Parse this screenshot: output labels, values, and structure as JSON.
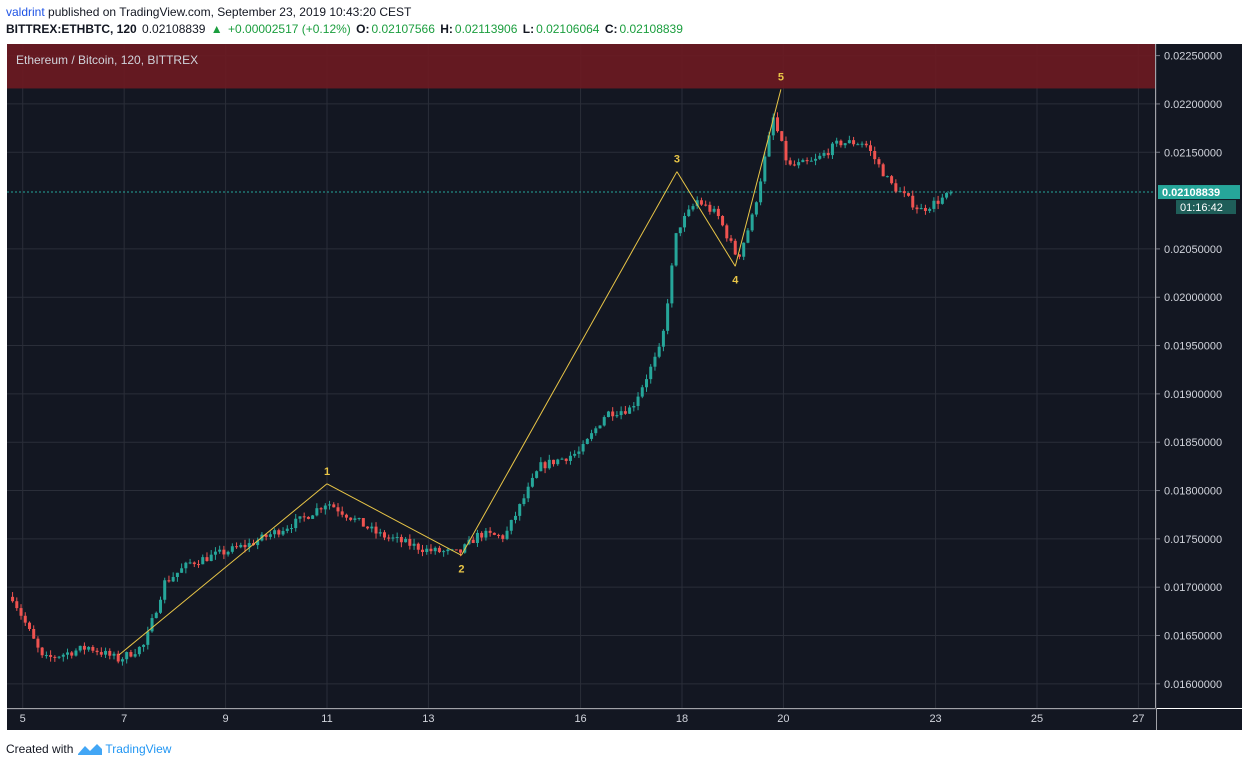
{
  "header": {
    "user": "valdrint",
    "published_text": "published on TradingView.com, September 23, 2019 10:43:20 CEST",
    "symbol": "BITTREX:ETHBTC, 120",
    "last": "0.02108839",
    "change": "+0.00002517 (+0.12%)",
    "open_label": "O:",
    "open": "0.02107566",
    "high_label": "H:",
    "high": "0.02113906",
    "low_label": "L:",
    "low": "0.02106064",
    "close_label": "C:",
    "close": "0.02108839"
  },
  "footer": {
    "created_with": "Created with",
    "brand": "TradingView"
  },
  "colors": {
    "background": "#131722",
    "grid": "#2a2e39",
    "up": "#26a69a",
    "down": "#ef5350",
    "wave_line": "#e8c547",
    "resistance": "#6b1a22",
    "price_line": "#26a69a"
  },
  "chart_data": {
    "type": "candlestick",
    "title": "Ethereum / Bitcoin, 120, BITTREX",
    "x_tick_labels": [
      "5",
      "7",
      "9",
      "11",
      "13",
      "16",
      "18",
      "20",
      "23",
      "25",
      "27"
    ],
    "y_tick_labels": [
      "0.02250000",
      "0.02200000",
      "0.02150000",
      "0.02050000",
      "0.02000000",
      "0.01950000",
      "0.01900000",
      "0.01850000",
      "0.01800000",
      "0.01750000",
      "0.01700000",
      "0.01650000",
      "0.01600000"
    ],
    "ylim": [
      0.01575,
      0.02262
    ],
    "current_price_label": "0.02108839",
    "countdown_label": "01:16:42",
    "current_price": 0.02108839,
    "resistance_zone": [
      0.02216,
      0.02262
    ],
    "anchors": [
      {
        "day": 4.8,
        "price": 0.0169
      },
      {
        "day": 5.4,
        "price": 0.01625
      },
      {
        "day": 6.3,
        "price": 0.01638
      },
      {
        "day": 6.9,
        "price": 0.01625
      },
      {
        "day": 7.4,
        "price": 0.0164
      },
      {
        "day": 7.8,
        "price": 0.01705
      },
      {
        "day": 8.3,
        "price": 0.01725
      },
      {
        "day": 9.5,
        "price": 0.01745
      },
      {
        "day": 10.5,
        "price": 0.0177
      },
      {
        "day": 11.0,
        "price": 0.01788
      },
      {
        "day": 12.0,
        "price": 0.01755
      },
      {
        "day": 13.0,
        "price": 0.01738
      },
      {
        "day": 13.6,
        "price": 0.01735
      },
      {
        "day": 14.0,
        "price": 0.01755
      },
      {
        "day": 14.5,
        "price": 0.01752
      },
      {
        "day": 15.2,
        "price": 0.01825
      },
      {
        "day": 16.0,
        "price": 0.0184
      },
      {
        "day": 16.5,
        "price": 0.0188
      },
      {
        "day": 17.0,
        "price": 0.01885
      },
      {
        "day": 17.6,
        "price": 0.0195
      },
      {
        "day": 17.9,
        "price": 0.0207
      },
      {
        "day": 18.3,
        "price": 0.021
      },
      {
        "day": 18.7,
        "price": 0.02085
      },
      {
        "day": 19.1,
        "price": 0.0204
      },
      {
        "day": 19.4,
        "price": 0.02085
      },
      {
        "day": 19.8,
        "price": 0.02185
      },
      {
        "day": 20.1,
        "price": 0.02135
      },
      {
        "day": 20.6,
        "price": 0.0214
      },
      {
        "day": 21.1,
        "price": 0.0216
      },
      {
        "day": 21.6,
        "price": 0.0216
      },
      {
        "day": 22.1,
        "price": 0.02118
      },
      {
        "day": 22.7,
        "price": 0.0209
      },
      {
        "day": 23.35,
        "price": 0.02108
      }
    ],
    "waves": [
      {
        "label": "1",
        "day": 11.0,
        "price": 0.01807
      },
      {
        "label": "2",
        "day": 13.65,
        "price": 0.01733
      },
      {
        "label": "3",
        "day": 17.9,
        "price": 0.0213
      },
      {
        "label": "4",
        "day": 19.05,
        "price": 0.02032
      },
      {
        "label": "5",
        "day": 19.95,
        "price": 0.02215
      }
    ],
    "wave_start": {
      "day": 6.9,
      "price": 0.0163
    }
  }
}
